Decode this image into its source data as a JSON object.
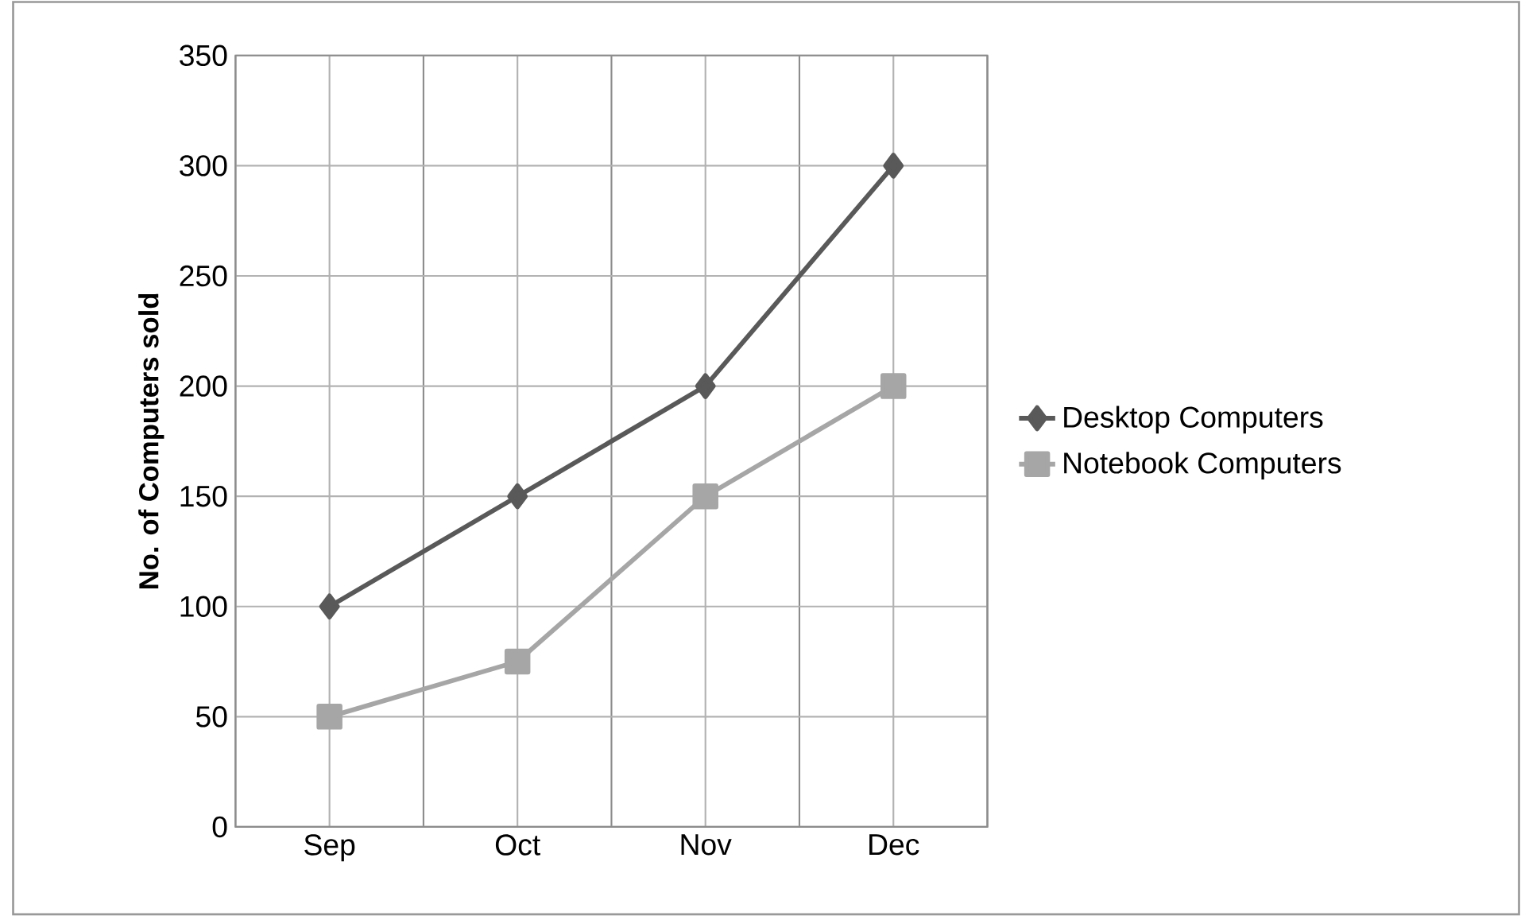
{
  "chart_data": {
    "type": "line",
    "ylabel": "No. of Computers sold",
    "categories": [
      "Sep",
      "Oct",
      "Nov",
      "Dec"
    ],
    "series": [
      {
        "name": "Desktop Computers",
        "color": "#595959",
        "marker": "diamond",
        "values": [
          100,
          150,
          200,
          300
        ]
      },
      {
        "name": "Notebook Computers",
        "color": "#a6a6a6",
        "marker": "square",
        "values": [
          50,
          75,
          150,
          200
        ]
      }
    ],
    "ylim": [
      0,
      350
    ],
    "yticks": [
      0,
      50,
      100,
      150,
      200,
      250,
      300,
      350
    ],
    "grid": true,
    "legend": "right",
    "line_style": "solid"
  }
}
